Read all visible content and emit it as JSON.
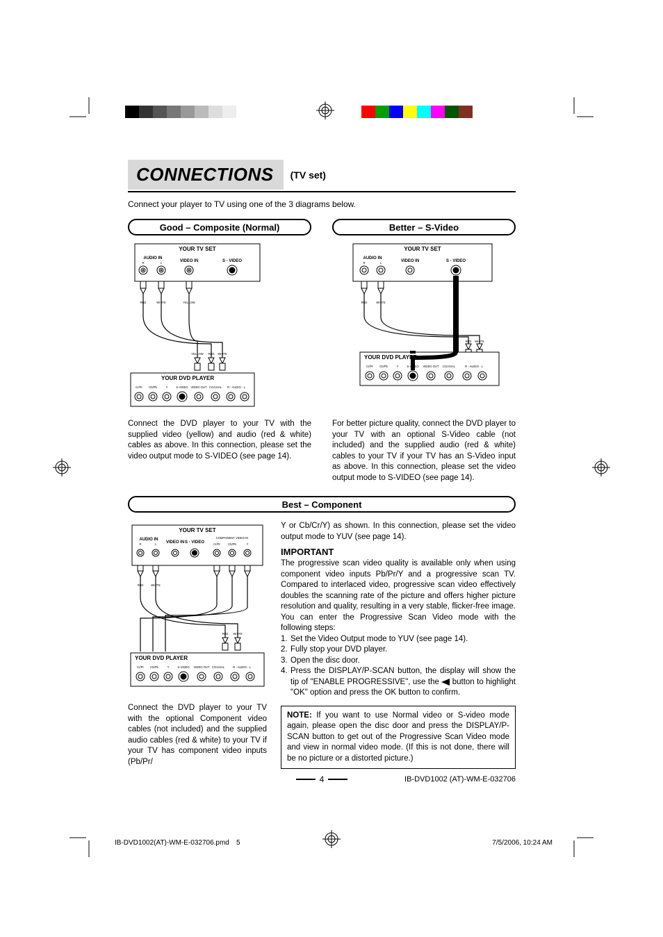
{
  "colors": {
    "bg": "#ffffff",
    "text": "#000000",
    "badge_bg": "#d9d9d9",
    "grayscale": [
      "#000000",
      "#333333",
      "#555555",
      "#777777",
      "#999999",
      "#bbbbbb",
      "#dddddd",
      "#eeeeee",
      "#ffffff",
      "#ffffff"
    ],
    "rgb_bar": [
      "#ff0000",
      "#00a000",
      "#0000ff",
      "#ffff00",
      "#00ffff",
      "#ff00ff",
      "#005500",
      "#803020",
      "#ffffff"
    ]
  },
  "title": {
    "main": "CONNECTIONS",
    "sub": "(TV set)"
  },
  "intro": "Connect your player to TV using one of the 3 diagrams below.",
  "good": {
    "pill": "Good – Composite (Normal)",
    "tv_title": "YOUR TV SET",
    "dvd_title": "YOUR DVD PLAYER",
    "tv_labels": {
      "audio_in": "AUDIO IN",
      "r": "R",
      "l": "L",
      "video_in": "VIDEO IN",
      "svideo": "S - VIDEO"
    },
    "cable_labels": {
      "red": "RED",
      "white": "WHITE",
      "yellow": "YELLOW"
    },
    "dvd_ports": [
      "Cr/Pr",
      "Cb/Pb",
      "Y",
      "S-VIDEO",
      "VIDEO OUT",
      "COAXIAL",
      "R - AUDIO - L"
    ],
    "para": "Connect the DVD player to your TV with the supplied video (yellow) and audio (red & white) cables as above. In this connection, please set the video output mode to S-VIDEO (see page 14)."
  },
  "better": {
    "pill": "Better – S-Video",
    "tv_title": "YOUR TV SET",
    "dvd_title": "YOUR DVD PLAYER",
    "tv_labels": {
      "audio_in": "AUDIO IN",
      "r": "R",
      "l": "L",
      "video_in": "VIDEO IN",
      "svideo": "S - VIDEO"
    },
    "cable_labels": {
      "red": "RED",
      "white": "WHITE"
    },
    "dvd_ports": [
      "Cr/Pr",
      "Cb/Pb",
      "Y",
      "S-VIDEO",
      "VIDEO OUT",
      "COAXIAL",
      "R - AUDIO - L"
    ],
    "para": "For better picture quality, connect the DVD player to your TV with an optional S-Video cable (not included) and the supplied audio (red & white) cables to your TV if your TV has an S-Video input as above. In this connection, please set the video output mode to S-VIDEO (see page 14)."
  },
  "best": {
    "pill": "Best – Component",
    "tv_title": "YOUR TV SET",
    "dvd_title": "YOUR DVD PLAYER",
    "tv_labels": {
      "audio_in": "AUDIO IN",
      "r": "R",
      "l": "L",
      "video_in": "VIDEO IN",
      "svideo": "S - VIDEO",
      "comp": "COMPONENT VIDEO IN",
      "cr": "Cr/Pr",
      "cb": "Cb/Pb",
      "y": "Y"
    },
    "cable_labels": {
      "red": "RED",
      "white": "WHITE"
    },
    "dvd_ports": [
      "Cr/Pr",
      "Cb/Pb",
      "Y",
      "S-VIDEO",
      "VIDEO OUT",
      "COAXIAL",
      "R - AUDIO - L"
    ],
    "left_para": "Connect the DVD player to your TV with the optional Component video cables (not included) and the supplied audio cables (red & white) to your TV if your TV has component video inputs (Pb/Pr/",
    "right_top": "Y or Cb/Cr/Y) as shown. In this connection, please set the video output mode to YUV (see page 14).",
    "important_head": "IMPORTANT",
    "important_para": "The progressive scan video quality is available only when using component video inputs Pb/Pr/Y and a progressive scan TV. Compared to interlaced video, progressive scan video effectively doubles the scanning rate of the picture and offers higher picture resolution and quality, resulting in a very stable, flicker-free image. You can enter the Progressive Scan Video mode with the following steps:",
    "steps": [
      "Set the Video Output mode to YUV (see page 14).",
      "Fully stop your DVD player.",
      "Open the disc door.",
      "Press the DISPLAY/P-SCAN button, the display will show the tip of \"ENABLE PROGRESSIVE\", use the ◀ button to highlight \"OK\" option and press the OK button to confirm."
    ],
    "note": "NOTE: If you want to use Normal video or S-video mode again, please open the disc door and press the DISPLAY/P-SCAN button to get out of the Progressive Scan Video mode and view in normal video mode. (If this is not done, there will be no picture or a distorted picture.)"
  },
  "page_number": "4",
  "doc_id": "IB-DVD1002 (AT)-WM-E-032706",
  "footer": {
    "file": "IB-DVD1002(AT)-WM-E-032706.pmd",
    "sheet": "5",
    "ts": "7/5/2006, 10:24 AM"
  }
}
